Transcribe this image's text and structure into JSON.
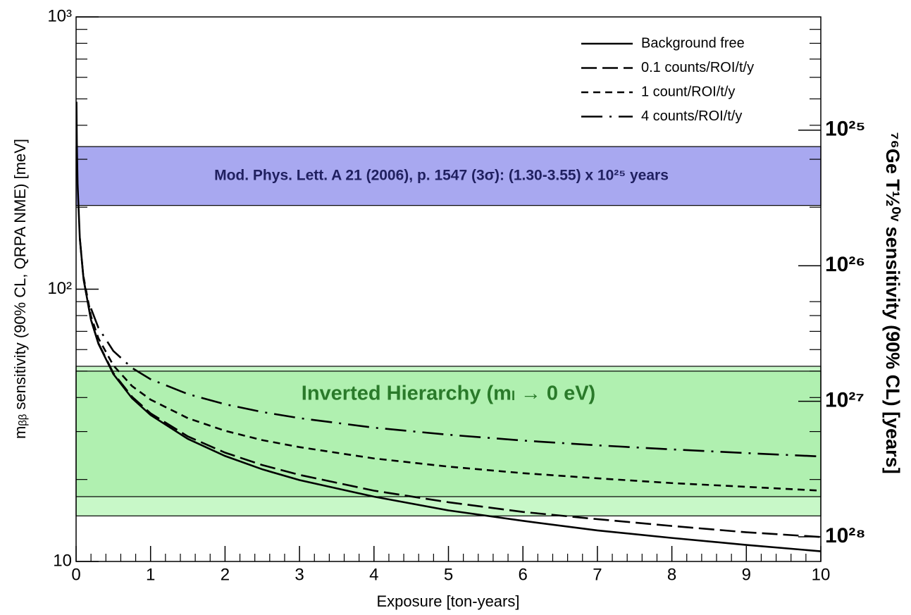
{
  "chart_data": {
    "type": "line",
    "x_label": "Exposure [ton-years]",
    "y_label": "mᵦᵦ sensitivity (90% CL, QRPA NME) [meV]",
    "y2_label": "⁷⁶Ge T½⁰ᵛ sensitivity (90% CL) [years]",
    "x": [
      0.005,
      0.01,
      0.02,
      0.05,
      0.1,
      0.2,
      0.3,
      0.5,
      0.75,
      1,
      1.5,
      2,
      2.5,
      3,
      4,
      5,
      6,
      7,
      8,
      9,
      10
    ],
    "series": [
      {
        "name": "Background free",
        "color": "#000000",
        "dash": "none",
        "values": [
          488,
          345,
          244,
          154,
          109,
          77.1,
          63.0,
          48.8,
          39.8,
          34.5,
          28.2,
          24.4,
          21.8,
          19.9,
          17.3,
          15.4,
          14.1,
          13.0,
          12.2,
          11.5,
          10.9
        ]
      },
      {
        "name": "0.1 counts/ROI/t/y",
        "color": "#000000",
        "dash": "22,8",
        "values": [
          null,
          null,
          null,
          154,
          109,
          77.3,
          63.3,
          49.2,
          40.3,
          35.0,
          28.8,
          25.1,
          22.6,
          20.8,
          18.2,
          16.5,
          15.2,
          14.3,
          13.5,
          12.8,
          12.3
        ]
      },
      {
        "name": "1 count/ROI/t/y",
        "color": "#000000",
        "dash": "10,7",
        "values": [
          null,
          null,
          null,
          null,
          111,
          79.6,
          66.0,
          52.5,
          44.1,
          39.3,
          33.6,
          30.2,
          27.9,
          26.3,
          23.9,
          22.3,
          21.1,
          20.2,
          19.4,
          18.8,
          18.2
        ]
      },
      {
        "name": "4 counts/ROI/t/y",
        "color": "#000000",
        "dash": "30,10,3,10",
        "values": [
          null,
          null,
          null,
          null,
          null,
          85.0,
          72.1,
          59.3,
          51.4,
          46.7,
          41.2,
          37.8,
          35.4,
          33.6,
          31.0,
          29.2,
          27.8,
          26.7,
          25.8,
          25.0,
          24.3
        ]
      }
    ],
    "bands": [
      {
        "label": "Mod. Phys. Lett. A 21 (2006), p. 1547 (3σ): (1.30-3.55) x 10²⁵ years",
        "range": [
          203,
          334
        ],
        "color": "#a8a8f0",
        "text_color": "#202060"
      },
      {
        "label": "Inverted Hierarchy (mₗ → 0 eV)",
        "range": [
          14.7,
          52.1
        ],
        "color": "#c8f8c8",
        "text_color": "#2a7a2a"
      },
      {
        "range": [
          17.3,
          50.0
        ],
        "color": "#b0f0b0"
      }
    ],
    "xlim": [
      0,
      10
    ],
    "xticks": [
      0,
      1,
      2,
      3,
      4,
      5,
      6,
      7,
      8,
      9,
      10
    ],
    "xminorticks": [
      0.2,
      0.4,
      0.6,
      0.8,
      1.2,
      1.4,
      1.6,
      1.8,
      2.2,
      2.4,
      2.6,
      2.8,
      3.2,
      3.4,
      3.6,
      3.8,
      4.2,
      4.4,
      4.6,
      4.8,
      5.2,
      5.4,
      5.6,
      5.8,
      6.2,
      6.4,
      6.6,
      6.8,
      7.2,
      7.4,
      7.6,
      7.8,
      8.2,
      8.4,
      8.6,
      8.8,
      9.2,
      9.4,
      9.6,
      9.8
    ],
    "ylim": [
      10,
      1000
    ],
    "ylog": true,
    "yticks": [
      10,
      {
        "value": 100,
        "label": "10²"
      },
      {
        "value": 1000,
        "label": "10³"
      }
    ],
    "yminorticks": [
      20,
      30,
      40,
      50,
      60,
      70,
      80,
      90,
      200,
      300,
      400,
      500,
      600,
      700,
      800,
      900
    ],
    "y2lim": [
      1.52e+28,
      1.46e+24
    ],
    "y2log": true,
    "y2ticks": [
      {
        "value": 1e+25,
        "label": "10²⁵"
      },
      {
        "value": 1e+26,
        "label": "10²⁶"
      },
      {
        "value": 1e+27,
        "label": "10²⁷"
      },
      {
        "value": 1e+28,
        "label": "10²⁸"
      }
    ],
    "legend": "top-right"
  }
}
